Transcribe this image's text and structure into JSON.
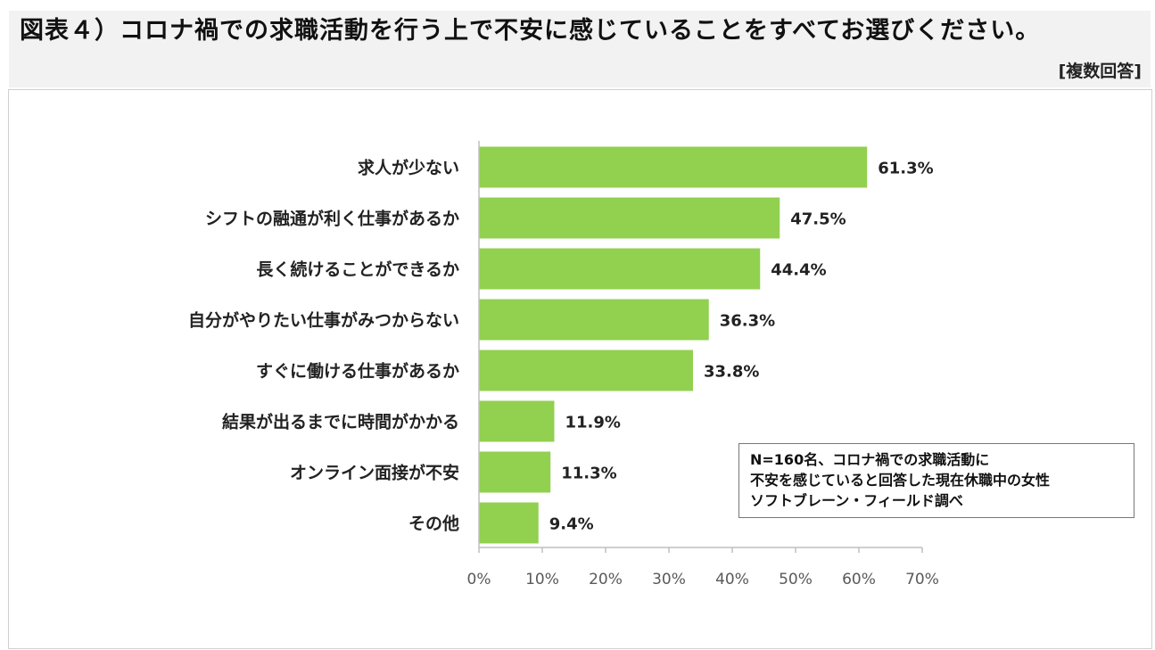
{
  "chart_data": {
    "type": "bar",
    "orientation": "horizontal",
    "title": "図表４）コロナ禍での求職活動を行う上で不安に感じていることをすべてお選びください。",
    "subtitle": "[複数回答]",
    "categories": [
      "求人が少ない",
      "シフトの融通が利く仕事があるか",
      "長く続けることができるか",
      "自分がやりたい仕事がみつからない",
      "すぐに働ける仕事があるか",
      "結果が出るまでに時間がかかる",
      "オンライン面接が不安",
      "その他"
    ],
    "values": [
      61.3,
      47.5,
      44.4,
      36.3,
      33.8,
      11.9,
      11.3,
      9.4
    ],
    "data_labels": [
      "61.3%",
      "47.5%",
      "44.4%",
      "36.3%",
      "33.8%",
      "11.9%",
      "11.3%",
      "9.4%"
    ],
    "xlim": [
      0,
      70
    ],
    "xticks": [
      0,
      10,
      20,
      30,
      40,
      50,
      60,
      70
    ],
    "xtick_labels": [
      "0%",
      "10%",
      "20%",
      "30%",
      "40%",
      "50%",
      "60%",
      "70%"
    ],
    "xlabel": "",
    "ylabel": "",
    "grid": false,
    "bar_color": "#92d050",
    "annotation": [
      "N=160名、コロナ禍での求職活動に",
      "不安を感じていると回答した現在休職中の女性",
      "ソフトブレーン・フィールド調べ"
    ]
  }
}
